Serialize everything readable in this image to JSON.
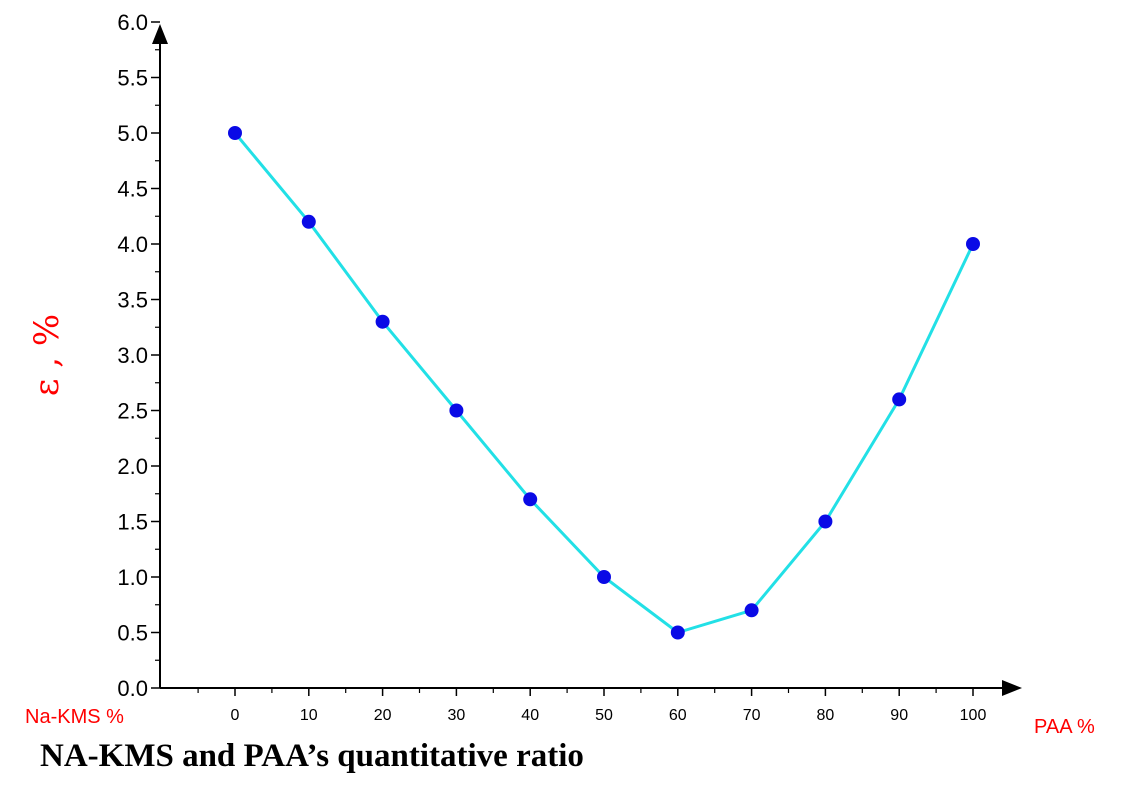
{
  "caption": "NA-KMS and PAA’s quantitative ratio",
  "chart_data": {
    "type": "line",
    "x": [
      0,
      10,
      20,
      30,
      40,
      50,
      60,
      70,
      80,
      90,
      100
    ],
    "series": [
      {
        "values": [
          5.0,
          4.2,
          3.3,
          2.5,
          1.7,
          1.0,
          0.5,
          0.7,
          1.5,
          2.6,
          4.0
        ]
      }
    ],
    "xlabel_left": "Na-KMS %",
    "xlabel_right": "PAA %",
    "ylabel": "ε , %",
    "ylim": [
      0,
      6.0
    ],
    "xlim": [
      0,
      100
    ],
    "y_ticks": [
      "0.0",
      "0.5",
      "1.0",
      "1.5",
      "2.0",
      "2.5",
      "3.0",
      "3.5",
      "4.0",
      "4.5",
      "5.0",
      "5.5",
      "6.0"
    ],
    "x_ticks": [
      "0",
      "10",
      "20",
      "30",
      "40",
      "50",
      "60",
      "70",
      "80",
      "90",
      "100"
    ],
    "grid": false,
    "line_color": "#22e0e6",
    "marker_color": "#0a0ae6",
    "label_color": "#ff0000"
  }
}
